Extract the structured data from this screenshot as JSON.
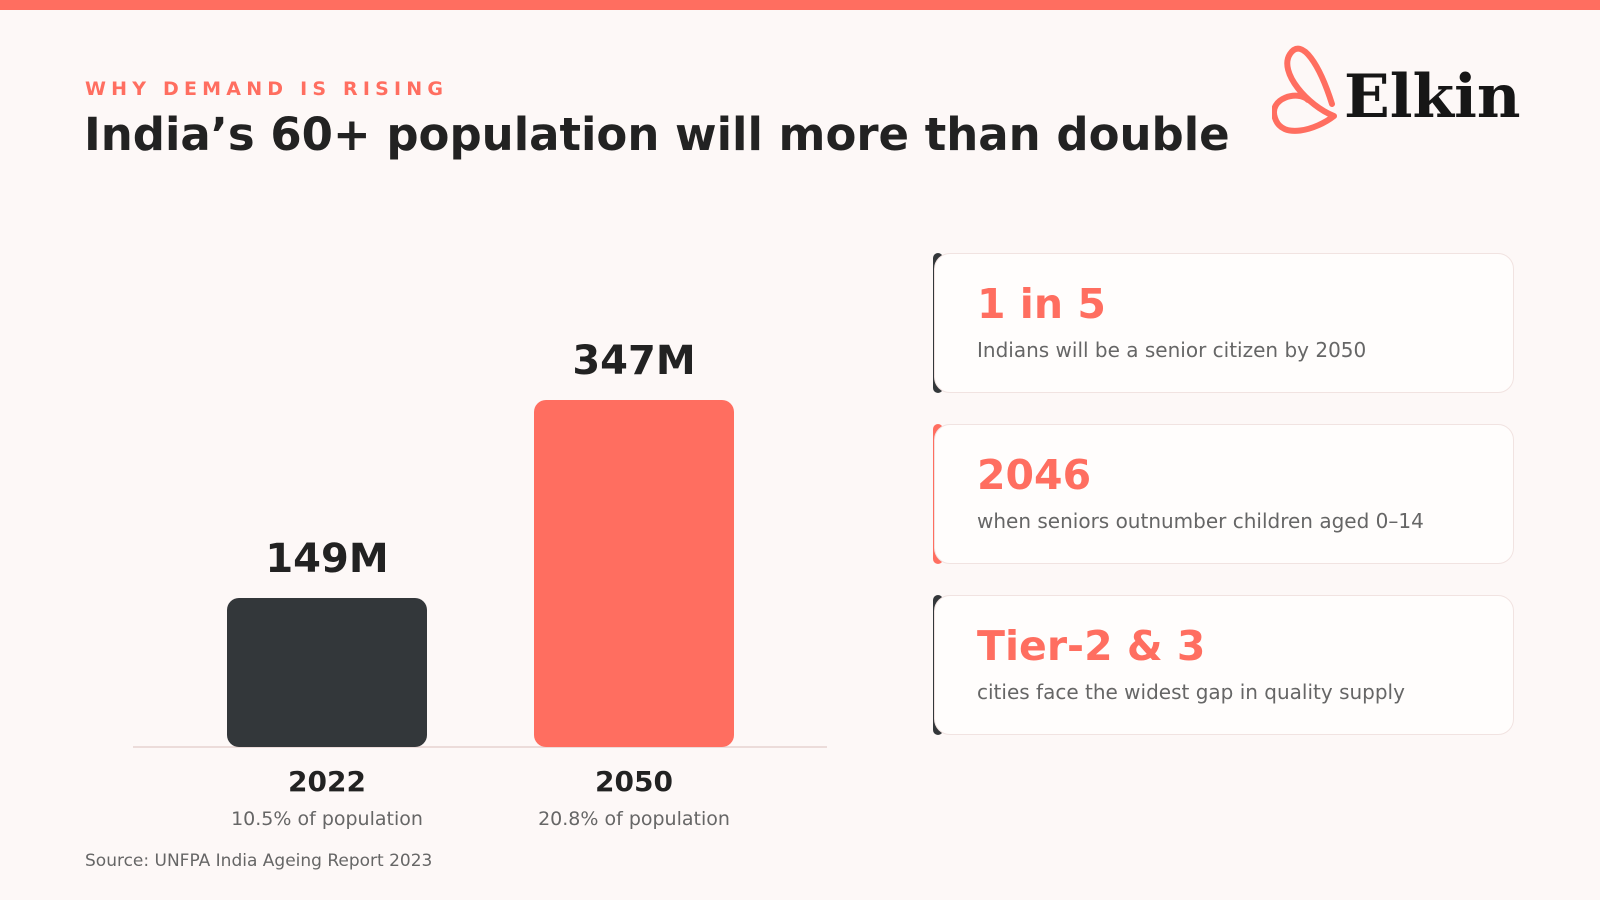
{
  "header": {
    "eyebrow": "WHY DEMAND IS RISING",
    "title": "India’s 60+ population will more than double",
    "logo_text": "Elkin"
  },
  "colors": {
    "accent": "#ff6e60",
    "dark": "#33373a",
    "background": "#fdf8f7"
  },
  "chart_data": {
    "type": "bar",
    "title": "",
    "xlabel": "",
    "ylabel": "",
    "grid": false,
    "categories": [
      "2022",
      "2050"
    ],
    "values": [
      149,
      347
    ],
    "value_labels": [
      "149M",
      "347M"
    ],
    "sublabels": [
      "10.5% of population",
      "20.8% of population"
    ],
    "bar_colors": [
      "#33373a",
      "#ff6e60"
    ],
    "ylim": [
      0,
      400
    ]
  },
  "stats": [
    {
      "value": "1 in 5",
      "desc": "Indians will be a senior citizen by 2050",
      "accent": "#33373a"
    },
    {
      "value": "2046",
      "desc": "when seniors outnumber children aged 0–14",
      "accent": "#ff6e60"
    },
    {
      "value": "Tier-2 & 3",
      "desc": "cities face the widest gap in quality supply",
      "accent": "#33373a"
    }
  ],
  "footer": {
    "source": "Source: UNFPA India Ageing Report 2023"
  }
}
